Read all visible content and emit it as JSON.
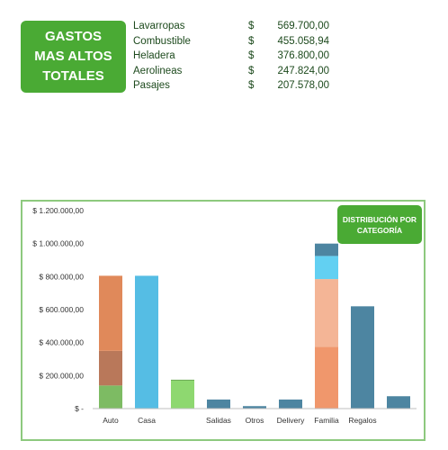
{
  "summary": {
    "title": "GASTOS MAS ALTOS TOTALES",
    "items": [
      {
        "name": "Lavarropas",
        "currency": "$",
        "amount": "569.700,00"
      },
      {
        "name": "Combustible",
        "currency": "$",
        "amount": "455.058,94"
      },
      {
        "name": "Heladera",
        "currency": "$",
        "amount": "376.800,00"
      },
      {
        "name": "Aerolineas",
        "currency": "$",
        "amount": "247.824,00"
      },
      {
        "name": "Pasajes",
        "currency": "$",
        "amount": "207.578,00"
      }
    ]
  },
  "chart_badge": "DISTRIBUCIÓN POR CATEGORÍA",
  "chart_data": {
    "type": "bar",
    "stacked": true,
    "title": "",
    "xlabel": "",
    "ylabel": "",
    "ylim": [
      0,
      1200000
    ],
    "y_tick_labels": [
      "$ -",
      "$ 200.000,00",
      "$ 400.000,00",
      "$ 600.000,00",
      "$ 800.000,00",
      "$ 1.000.000,00",
      "$ 1.200.000,00"
    ],
    "grid": false,
    "legend": "none",
    "categories": [
      "Auto",
      "Casa",
      "",
      "Salidas",
      "Otros",
      "Delivery",
      "Familia",
      "Regalos",
      ""
    ],
    "bars": [
      {
        "category": "Auto",
        "segments": [
          {
            "value": 140000,
            "color": "#7dbb63"
          },
          {
            "value": 210000,
            "color": "#b9785a"
          },
          {
            "value": 455000,
            "color": "#e0895a"
          }
        ]
      },
      {
        "category": "Casa",
        "segments": [
          {
            "value": 805000,
            "color": "#55bde4"
          }
        ]
      },
      {
        "category": "",
        "segments": [
          {
            "value": 170000,
            "color": "#8ed870"
          },
          {
            "value": 5000,
            "color": "#5aa040"
          }
        ]
      },
      {
        "category": "Salidas",
        "segments": [
          {
            "value": 55000,
            "color": "#4d85a1"
          }
        ]
      },
      {
        "category": "Otros",
        "segments": [
          {
            "value": 15000,
            "color": "#4d85a1"
          }
        ]
      },
      {
        "category": "Delivery",
        "segments": [
          {
            "value": 55000,
            "color": "#4d85a1"
          }
        ]
      },
      {
        "category": "Familia",
        "segments": [
          {
            "value": 375000,
            "color": "#f0976c"
          },
          {
            "value": 410000,
            "color": "#f4b596"
          },
          {
            "value": 140000,
            "color": "#62d0f2"
          },
          {
            "value": 75000,
            "color": "#4d85a1"
          }
        ]
      },
      {
        "category": "Regalos",
        "segments": [
          {
            "value": 620000,
            "color": "#4d85a1"
          }
        ]
      },
      {
        "category": "",
        "segments": [
          {
            "value": 75000,
            "color": "#4d85a1"
          }
        ]
      }
    ]
  }
}
